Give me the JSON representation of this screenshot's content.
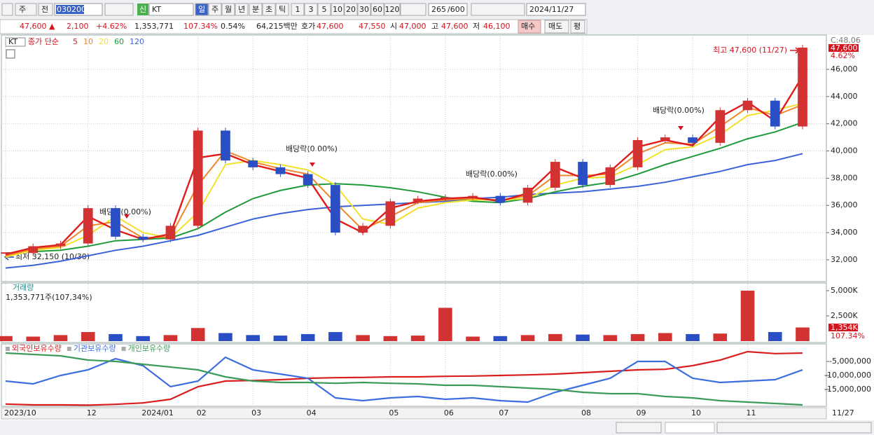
{
  "toolbar": {
    "period": "주",
    "prev": "전",
    "code": "030200",
    "credit": "신",
    "name": "KT",
    "units": [
      "일",
      "주",
      "월",
      "년",
      "분",
      "초",
      "틱"
    ],
    "numbers": [
      "1",
      "3",
      "5",
      "10",
      "20",
      "30",
      "60",
      "120"
    ],
    "count": "265",
    "max": "/600",
    "date": "2024/11/27"
  },
  "quote": {
    "price": "47,600 ▲",
    "change": "2,100",
    "rate": "+4.62%",
    "volume": "1,353,771",
    "volume_ratio": "107.34%",
    "turnover": "0.54%",
    "amount": "64,215백만",
    "hoga_label": "호가",
    "ask": "47,600",
    "bid": "47,550",
    "open_label": "시",
    "open": "47,000",
    "high_label": "고",
    "high": "47,600",
    "low_label": "저",
    "low": "46,100",
    "buy": "매수",
    "sell": "매도",
    "avg": "평"
  },
  "x_axis": {
    "categories": [
      "2023/10",
      null,
      null,
      "12",
      null,
      "2024/01",
      null,
      "02",
      null,
      "03",
      null,
      "04",
      null,
      null,
      "05",
      null,
      "06",
      null,
      "07",
      null,
      null,
      "08",
      null,
      "09",
      null,
      "10",
      null,
      "11",
      null,
      null
    ],
    "last_date": "11/27"
  },
  "chart_data": [
    {
      "type": "candlestick",
      "symbol": "KT",
      "ma_label": "종가 단순",
      "close": [
        32500,
        33000,
        33200,
        35800,
        33700,
        33500,
        34500,
        41500,
        39300,
        38800,
        38300,
        37500,
        34000,
        34500,
        36300,
        36500,
        36600,
        36700,
        36200,
        37300,
        39200,
        37500,
        38800,
        40800,
        41000,
        40600,
        43000,
        43700,
        41800,
        47600
      ],
      "series": [
        {
          "name": "5",
          "color": "#e01b1b",
          "values": [
            32400,
            32900,
            33100,
            35200,
            34200,
            33500,
            33900,
            39500,
            39800,
            39000,
            38500,
            38000,
            35000,
            34000,
            35800,
            36300,
            36500,
            36600,
            36300,
            36900,
            38800,
            38000,
            38500,
            40300,
            40800,
            40400,
            42500,
            43600,
            42200,
            45500
          ]
        },
        {
          "name": "10",
          "color": "#f0882a",
          "values": [
            32300,
            32800,
            33000,
            34500,
            34800,
            33600,
            33700,
            37500,
            40000,
            39200,
            38700,
            38300,
            36200,
            34200,
            35200,
            36200,
            36400,
            36500,
            36400,
            36700,
            38200,
            38200,
            38300,
            39800,
            40600,
            40500,
            41800,
            43200,
            42600,
            43400
          ]
        },
        {
          "name": "20",
          "color": "#f2e12a",
          "values": [
            32200,
            32700,
            32900,
            33800,
            35200,
            34000,
            33600,
            35500,
            39000,
            39300,
            39000,
            38600,
            37500,
            35000,
            34600,
            35800,
            36200,
            36400,
            36400,
            36500,
            37500,
            38000,
            38100,
            39000,
            40100,
            40300,
            41200,
            42600,
            43000,
            43500
          ]
        },
        {
          "name": "60",
          "color": "#1f9a3a",
          "values": [
            32500,
            32600,
            32700,
            33000,
            33400,
            33500,
            33600,
            34300,
            35500,
            36500,
            37100,
            37500,
            37600,
            37500,
            37300,
            37000,
            36600,
            36300,
            36200,
            36500,
            37000,
            37400,
            37700,
            38300,
            39000,
            39600,
            40200,
            40900,
            41400,
            42100
          ]
        },
        {
          "name": "120",
          "color": "#3a62d8",
          "values": [
            31400,
            31600,
            31900,
            32300,
            32700,
            33000,
            33400,
            33800,
            34400,
            35000,
            35400,
            35700,
            35900,
            36000,
            36100,
            36200,
            36300,
            36500,
            36600,
            36800,
            36900,
            37000,
            37200,
            37400,
            37700,
            38100,
            38500,
            39000,
            39300,
            39800
          ]
        }
      ],
      "ylim": [
        30400,
        48420
      ],
      "yticks": [
        {
          "value": 32000,
          "label": "32,000"
        },
        {
          "value": 34000,
          "label": "34,000"
        },
        {
          "value": 36000,
          "label": "36,000"
        },
        {
          "value": 38000,
          "label": "38,000"
        },
        {
          "value": 40000,
          "label": "40,000"
        },
        {
          "value": 42000,
          "label": "42,000"
        },
        {
          "value": 44000,
          "label": "44,000"
        },
        {
          "value": 46000,
          "label": "46,000"
        }
      ],
      "current_high": "C:48,06",
      "last_label": "47,600",
      "last_rate": "4.62%",
      "annotations": {
        "high": "최고 47,600 (11/27)",
        "low": "최저 32,150 (10/30)",
        "dividends": [
          "배당락(0.00%)",
          "배당락(0.00%)",
          "배당락(0.00%)",
          "배당락(0.00%)"
        ]
      },
      "grid": true
    },
    {
      "type": "bar",
      "title": "거래량",
      "subtitle": "1,353,771주(107,34%)",
      "values": [
        500,
        450,
        600,
        900,
        700,
        500,
        600,
        1300,
        800,
        600,
        550,
        700,
        900,
        600,
        500,
        550,
        3300,
        450,
        500,
        600,
        700,
        650,
        600,
        700,
        800,
        700,
        750,
        5000,
        900,
        1354
      ],
      "up_color": "#d23232",
      "down_color": "#2a4fc4",
      "ylim": [
        0,
        5690
      ],
      "yticks": [
        {
          "value": 5000,
          "label": "5,000K"
        },
        {
          "value": 2500,
          "label": "2,500K"
        }
      ],
      "last_label": "1,354K",
      "last_ratio": "107.34%"
    },
    {
      "type": "line",
      "series": [
        {
          "name": "외국인보유수량",
          "color": "#d81e1e",
          "values": [
            -20200000,
            -20500000,
            -20500000,
            -20600000,
            -20300000,
            -19800000,
            -18500000,
            -14000000,
            -12000000,
            -11800000,
            -11500000,
            -11000000,
            -10800000,
            -10700000,
            -10500000,
            -10500000,
            -10300000,
            -10200000,
            -10000000,
            -9800000,
            -9500000,
            -9000000,
            -8500000,
            -8000000,
            -7800000,
            -6500000,
            -4500000,
            -1500000,
            -2200000,
            -2000000
          ]
        },
        {
          "name": "기관보유수량",
          "color": "#3c6ee0",
          "values": [
            -12000000,
            -13000000,
            -10000000,
            -8000000,
            -4000000,
            -6500000,
            -14000000,
            -12000000,
            -3500000,
            -8000000,
            -9500000,
            -11000000,
            -18000000,
            -19000000,
            -18000000,
            -17500000,
            -18500000,
            -18000000,
            -19000000,
            -19500000,
            -16000000,
            -13500000,
            -11000000,
            -5000000,
            -5000000,
            -11000000,
            -12500000,
            -12000000,
            -11500000,
            -8000000
          ]
        },
        {
          "name": "개인보유수량",
          "color": "#3c9a5a",
          "values": [
            -2000000,
            -2500000,
            -3000000,
            -4500000,
            -5000000,
            -6000000,
            -7000000,
            -8000000,
            -10500000,
            -12000000,
            -12500000,
            -12500000,
            -12800000,
            -12500000,
            -12800000,
            -13000000,
            -13500000,
            -13500000,
            -14000000,
            -14500000,
            -15000000,
            -16000000,
            -16500000,
            -16500000,
            -17500000,
            -18000000,
            -19000000,
            -19500000,
            -20000000,
            -20500000
          ]
        }
      ],
      "ylim": [
        -21000000,
        750000
      ],
      "yticks": [
        {
          "value": -5000000,
          "label": "-5,000,000"
        },
        {
          "value": -10000000,
          "label": "-10,000,000"
        },
        {
          "value": -15000000,
          "label": "-15,000,000"
        }
      ]
    }
  ]
}
